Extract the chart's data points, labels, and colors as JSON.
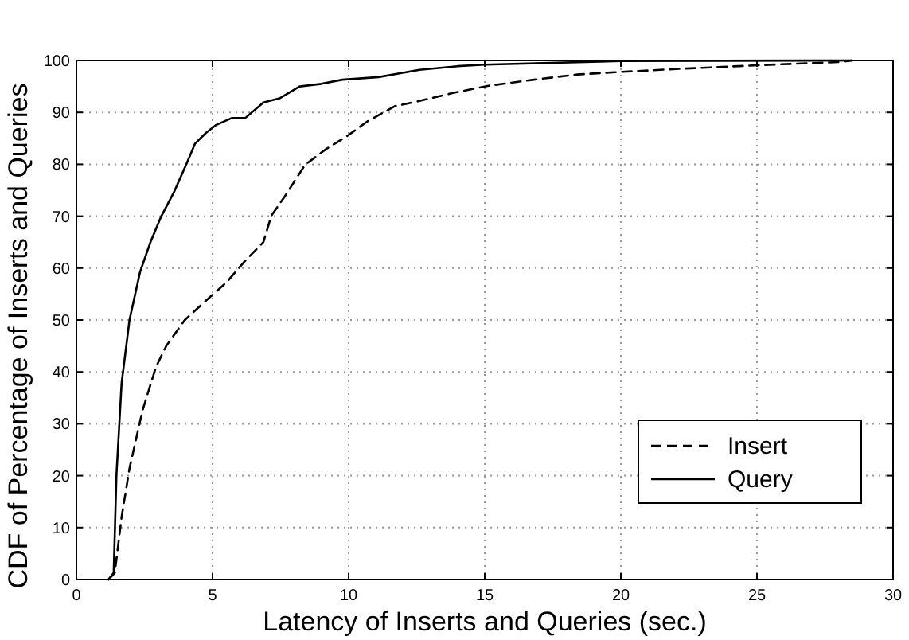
{
  "chart_data": {
    "type": "line",
    "xlabel": "Latency of Inserts and Queries (sec.)",
    "ylabel": "CDF of Percentage of Inserts and Queries",
    "xlim": [
      0,
      30
    ],
    "ylim": [
      0,
      100
    ],
    "xticks": [
      0,
      5,
      10,
      15,
      20,
      25,
      30
    ],
    "yticks": [
      0,
      10,
      20,
      30,
      40,
      50,
      60,
      70,
      80,
      90,
      100
    ],
    "grid": true,
    "legend": "bottom right",
    "series": [
      {
        "name": "Insert",
        "color": "#000000",
        "line_style": "dashed",
        "x": [
          1.18,
          1.41,
          1.66,
          1.95,
          2.43,
          2.92,
          3.3,
          3.98,
          4.65,
          5.52,
          6.2,
          6.87,
          7.16,
          7.64,
          8.4,
          9.19,
          9.96,
          10.7,
          11.7,
          12.6,
          13.8,
          15.1,
          16.8,
          18.4,
          20,
          22.2,
          25.1,
          28,
          28.5
        ],
        "values": [
          0,
          1.3,
          12,
          21.4,
          32.6,
          40.9,
          45,
          50,
          53.2,
          57.3,
          61.4,
          65,
          70.1,
          73.7,
          79.9,
          83,
          85.5,
          88.3,
          91.2,
          92.2,
          93.7,
          95.1,
          96.3,
          97.3,
          97.8,
          98.4,
          99.1,
          99.7,
          100
        ]
      },
      {
        "name": "Query",
        "color": "#000000",
        "line_style": "solid",
        "x": [
          1.18,
          1.37,
          1.47,
          1.66,
          1.95,
          2.34,
          2.72,
          3.1,
          3.59,
          4.07,
          4.36,
          4.75,
          5.14,
          5.7,
          6.2,
          6.87,
          7.46,
          8.2,
          9.0,
          9.77,
          11.1,
          12.6,
          14,
          15,
          20,
          28.5
        ],
        "values": [
          0,
          1.3,
          20,
          37.8,
          50,
          59.3,
          65,
          69.8,
          74.7,
          80.4,
          84,
          86,
          87.6,
          88.9,
          88.9,
          91.9,
          92.7,
          95,
          95.5,
          96.3,
          96.8,
          98.2,
          98.9,
          99.2,
          99.9,
          100
        ]
      }
    ]
  }
}
